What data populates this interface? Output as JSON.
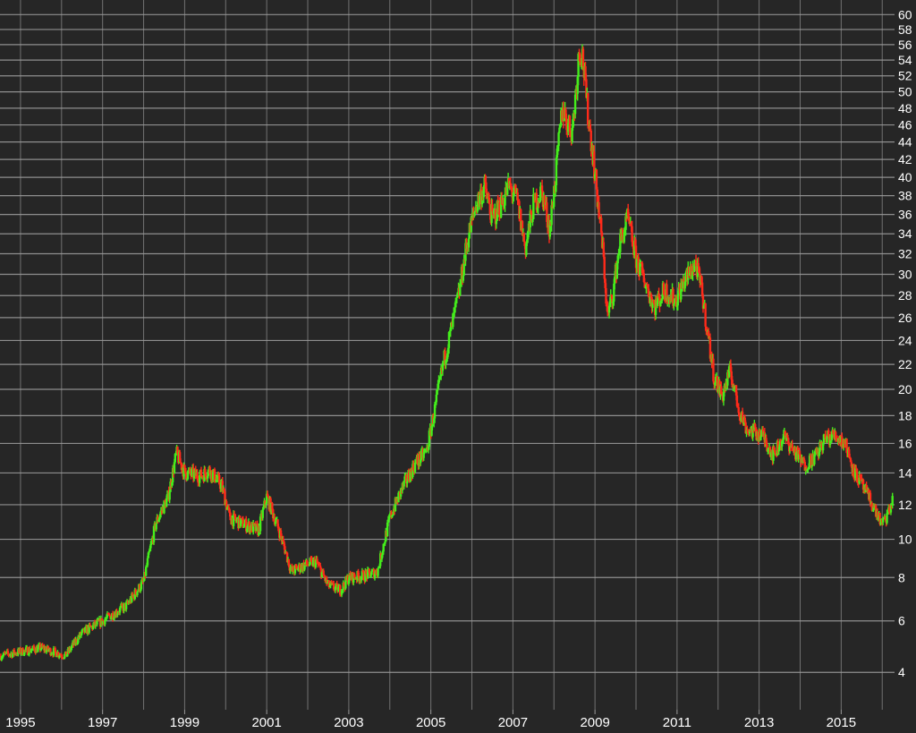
{
  "chart_data": {
    "type": "candlestick",
    "x_tick_labels": [
      "1995",
      "1997",
      "1999",
      "2001",
      "2003",
      "2005",
      "2007",
      "2009",
      "2011",
      "2013",
      "2015"
    ],
    "y_tick_labels": [
      "60",
      "58",
      "56",
      "54",
      "52",
      "50",
      "48",
      "46",
      "44",
      "42",
      "40",
      "38",
      "36",
      "34",
      "32",
      "30",
      "28",
      "26",
      "24",
      "22",
      "20",
      "18",
      "16",
      "14",
      "12",
      "10",
      "8",
      "6",
      "4"
    ],
    "xlim": [
      1994.5,
      2016.3
    ],
    "y_scale": "sqrt",
    "ylim": [
      2.8,
      61.5
    ],
    "grid": true,
    "colors": {
      "background": "#262626",
      "grid": "#9a9a9a",
      "up": "#44ee1c",
      "down": "#ff2a1a",
      "text": "#ffffff"
    },
    "series_points": [
      [
        1994.5,
        4.6
      ],
      [
        1995.5,
        4.9
      ],
      [
        1996.1,
        4.6
      ],
      [
        1996.5,
        5.5
      ],
      [
        1997.0,
        6.0
      ],
      [
        1997.6,
        6.7
      ],
      [
        1998.0,
        7.8
      ],
      [
        1998.3,
        10.9
      ],
      [
        1998.6,
        12.5
      ],
      [
        1998.8,
        15.3
      ],
      [
        1999.0,
        14.0
      ],
      [
        1999.4,
        13.8
      ],
      [
        1999.6,
        14.2
      ],
      [
        1999.9,
        13.2
      ],
      [
        2000.1,
        11.2
      ],
      [
        2000.5,
        10.8
      ],
      [
        2000.8,
        10.5
      ],
      [
        2001.0,
        12.5
      ],
      [
        2001.3,
        10.5
      ],
      [
        2001.6,
        8.3
      ],
      [
        2001.9,
        8.6
      ],
      [
        2002.2,
        8.8
      ],
      [
        2002.5,
        7.6
      ],
      [
        2002.8,
        7.4
      ],
      [
        2003.0,
        8.0
      ],
      [
        2003.4,
        8.1
      ],
      [
        2003.7,
        8.3
      ],
      [
        2004.0,
        11.2
      ],
      [
        2004.3,
        13.0
      ],
      [
        2004.6,
        14.5
      ],
      [
        2004.9,
        15.5
      ],
      [
        2005.1,
        18.5
      ],
      [
        2005.3,
        22.0
      ],
      [
        2005.5,
        25.0
      ],
      [
        2005.7,
        28.5
      ],
      [
        2005.9,
        33.5
      ],
      [
        2006.1,
        37.0
      ],
      [
        2006.3,
        39.0
      ],
      [
        2006.5,
        35.5
      ],
      [
        2006.7,
        37.0
      ],
      [
        2006.9,
        39.0
      ],
      [
        2007.1,
        37.5
      ],
      [
        2007.3,
        32.5
      ],
      [
        2007.5,
        37.0
      ],
      [
        2007.7,
        38.5
      ],
      [
        2007.9,
        34.5
      ],
      [
        2008.05,
        40.5
      ],
      [
        2008.2,
        48.0
      ],
      [
        2008.35,
        46.0
      ],
      [
        2008.45,
        45.5
      ],
      [
        2008.55,
        51.0
      ],
      [
        2008.62,
        55.5
      ],
      [
        2008.7,
        54.5
      ],
      [
        2008.8,
        48.5
      ],
      [
        2008.95,
        42.5
      ],
      [
        2009.1,
        36.0
      ],
      [
        2009.2,
        32.0
      ],
      [
        2009.3,
        26.0
      ],
      [
        2009.45,
        28.5
      ],
      [
        2009.6,
        33.0
      ],
      [
        2009.8,
        35.5
      ],
      [
        2010.0,
        31.5
      ],
      [
        2010.2,
        29.5
      ],
      [
        2010.45,
        27.0
      ],
      [
        2010.7,
        28.5
      ],
      [
        2010.95,
        27.5
      ],
      [
        2011.2,
        29.5
      ],
      [
        2011.45,
        31.0
      ],
      [
        2011.6,
        28.5
      ],
      [
        2011.75,
        24.5
      ],
      [
        2011.9,
        21.0
      ],
      [
        2012.1,
        19.5
      ],
      [
        2012.3,
        21.5
      ],
      [
        2012.5,
        18.5
      ],
      [
        2012.7,
        17.0
      ],
      [
        2012.9,
        16.8
      ],
      [
        2013.1,
        16.5
      ],
      [
        2013.35,
        15.2
      ],
      [
        2013.6,
        16.5
      ],
      [
        2013.85,
        15.5
      ],
      [
        2014.1,
        14.5
      ],
      [
        2014.4,
        15.2
      ],
      [
        2014.6,
        16.3
      ],
      [
        2014.85,
        16.6
      ],
      [
        2015.1,
        16.0
      ],
      [
        2015.3,
        14.2
      ],
      [
        2015.55,
        13.0
      ],
      [
        2015.8,
        11.8
      ],
      [
        2016.0,
        10.8
      ],
      [
        2016.15,
        11.5
      ],
      [
        2016.25,
        12.2
      ]
    ]
  }
}
